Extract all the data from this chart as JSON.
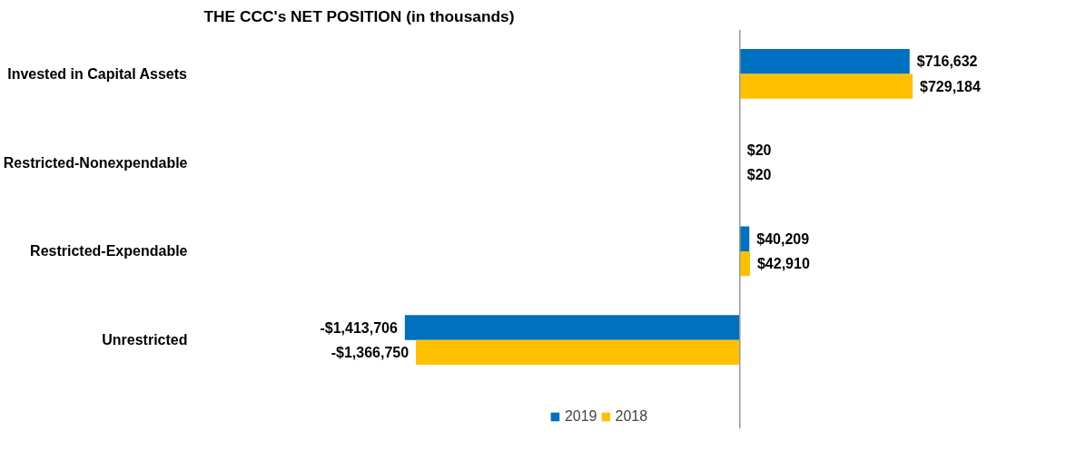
{
  "chart_data": {
    "type": "bar",
    "orientation": "horizontal",
    "title": "THE CCC's NET POSITION (in thousands)",
    "categories": [
      "Invested in Capital Assets",
      "Restricted-Nonexpendable",
      "Restricted-Expendable",
      "Unrestricted"
    ],
    "series": [
      {
        "name": "2019",
        "color": "#0070c0",
        "values": [
          716632,
          20,
          40209,
          -1413706
        ],
        "value_labels": [
          "$716,632",
          "$20",
          "$40,209",
          "-$1,413,706"
        ]
      },
      {
        "name": "2018",
        "color": "#ffc000",
        "values": [
          729184,
          20,
          42910,
          -1366750
        ],
        "value_labels": [
          "$729,184",
          "$20",
          "$42,910",
          "-$1,366,750"
        ]
      }
    ],
    "legend": "bottom",
    "grid": false
  }
}
